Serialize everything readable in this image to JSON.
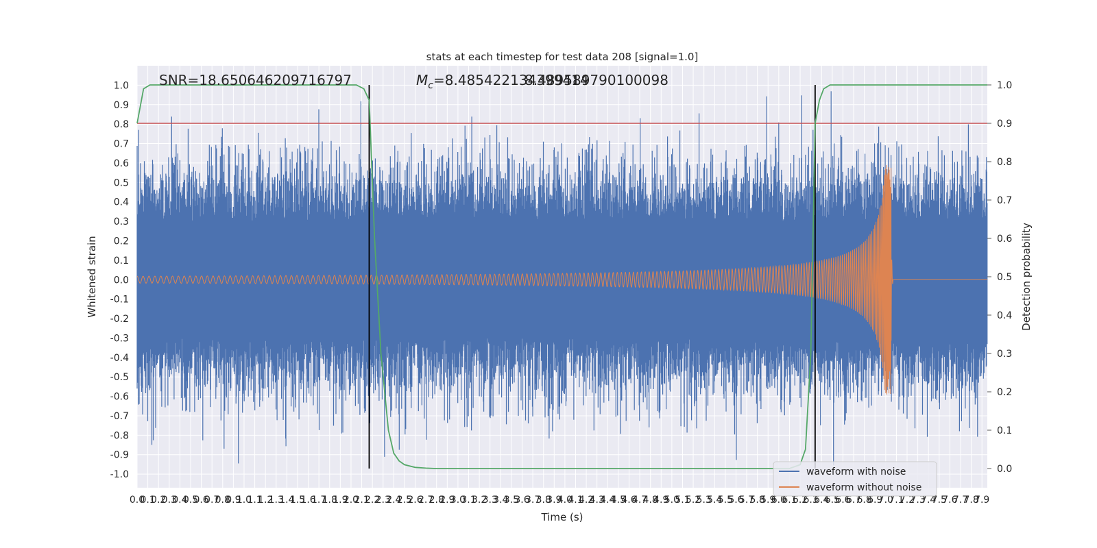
{
  "chart_data": {
    "type": "line",
    "title": "stats at each timestep for test data 208 [signal=1.0]",
    "xlabel": "Time (s)",
    "ylabel": "Whitened strain",
    "ylabel_right": "Detection probability",
    "xlim": [
      0,
      7.95
    ],
    "ylim": [
      -1.07,
      1.1
    ],
    "ylim_right": [
      -0.05,
      1.05
    ],
    "x_ticks": [
      "0.0",
      "0.1",
      "0.2",
      "0.3",
      "0.4",
      "0.5",
      "0.6",
      "0.7",
      "0.8",
      "0.9",
      "1.0",
      "1.1",
      "1.2",
      "1.3",
      "1.4",
      "1.5",
      "1.6",
      "1.7",
      "1.8",
      "1.9",
      "2.0",
      "2.1",
      "2.2",
      "2.3",
      "2.4",
      "2.5",
      "2.6",
      "2.7",
      "2.8",
      "2.9",
      "3.0",
      "3.1",
      "3.2",
      "3.3",
      "3.4",
      "3.5",
      "3.6",
      "3.7",
      "3.8",
      "3.9",
      "4.0",
      "4.1",
      "4.2",
      "4.3",
      "4.4",
      "4.5",
      "4.6",
      "4.7",
      "4.8",
      "4.9",
      "5.0",
      "5.1",
      "5.2",
      "5.3",
      "5.4",
      "5.5",
      "5.6",
      "5.7",
      "5.8",
      "5.9",
      "6.0",
      "6.1",
      "6.2",
      "6.3",
      "6.4",
      "6.5",
      "6.6",
      "6.7",
      "6.8",
      "6.9",
      "7.0",
      "7.1",
      "7.2",
      "7.3",
      "7.4",
      "7.5",
      "7.6",
      "7.7",
      "7.8",
      "7.9"
    ],
    "y_ticks": [
      "1.0",
      "0.9",
      "0.8",
      "0.7",
      "0.6",
      "0.5",
      "0.4",
      "0.3",
      "0.2",
      "0.1",
      "0.0",
      "-0.1",
      "-0.2",
      "-0.3",
      "-0.4",
      "-0.5",
      "-0.6",
      "-0.7",
      "-0.8",
      "-0.9",
      "-1.0"
    ],
    "y_ticks_right": [
      "1.0",
      "0.9",
      "0.8",
      "0.7",
      "0.6",
      "0.5",
      "0.4",
      "0.3",
      "0.2",
      "0.1",
      "0.0"
    ],
    "annotations": {
      "snr": "SNR=18.650646209716797",
      "mc_symbol": "M",
      "mc_sub": "c",
      "mc_value": "=8.485422134399414",
      "mc_overlap": "8.489589790100098"
    },
    "threshold": 0.9,
    "vertical_lines": [
      2.17,
      6.34
    ],
    "merger_time": 7.05,
    "detection_probability": {
      "x": [
        0,
        0.06,
        0.12,
        0.2,
        1.9,
        2.05,
        2.12,
        2.17,
        2.22,
        2.28,
        2.35,
        2.4,
        2.45,
        2.5,
        2.6,
        2.7,
        2.8,
        3.0,
        6.1,
        6.2,
        6.25,
        6.3,
        6.34,
        6.38,
        6.42,
        6.48,
        6.55,
        6.65,
        7.95
      ],
      "y": [
        0.9,
        0.99,
        1.0,
        1.0,
        1.0,
        1.0,
        0.99,
        0.96,
        0.6,
        0.3,
        0.1,
        0.04,
        0.02,
        0.01,
        0.003,
        0.001,
        0.0,
        0.0,
        0.0,
        0.01,
        0.05,
        0.3,
        0.9,
        0.96,
        0.99,
        1.0,
        1.0,
        1.0,
        1.0
      ]
    },
    "series": [
      {
        "name": "waveform with noise",
        "color": "#4c72b0"
      },
      {
        "name": "waveform without noise",
        "color": "#dd8452"
      }
    ],
    "prob_color": "#55a868",
    "threshold_color": "#c44e52",
    "legend_location": "lower right",
    "grid": true
  }
}
